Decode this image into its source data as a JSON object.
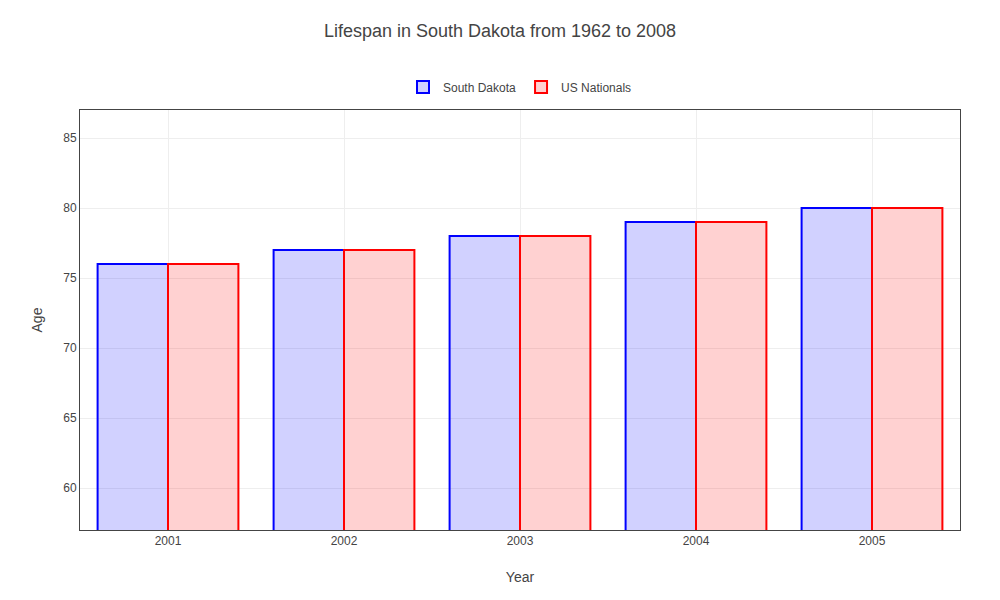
{
  "chart_data": {
    "type": "bar",
    "title": "Lifespan in South Dakota from 1962 to 2008",
    "xlabel": "Year",
    "ylabel": "Age",
    "categories": [
      "2001",
      "2002",
      "2003",
      "2004",
      "2005"
    ],
    "series": [
      {
        "name": "South Dakota",
        "color": "#0000ff",
        "values": [
          76,
          77,
          78,
          79,
          80
        ]
      },
      {
        "name": "US Nationals",
        "color": "#ff0000",
        "values": [
          76,
          77,
          78,
          79,
          80
        ]
      }
    ],
    "ylim": [
      57,
      87
    ],
    "yticks": [
      60,
      65,
      70,
      75,
      80,
      85
    ],
    "grid": true,
    "legend": "top"
  }
}
